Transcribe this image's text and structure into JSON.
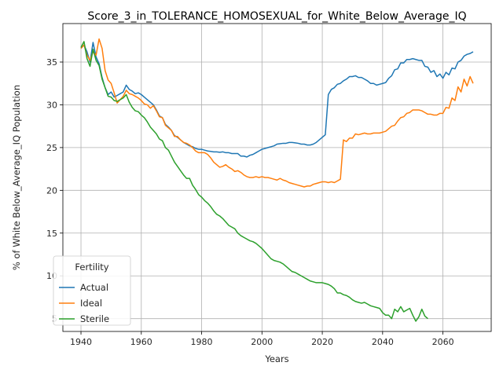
{
  "chart_data": {
    "type": "line",
    "title": "Score_3_in_TOLERANCE_HOMOSEXUAL_for_White_Below_Average_IQ",
    "xlabel": "Years",
    "ylabel": "% of White Below_Average_IQ Population",
    "xlim": [
      1934,
      2076
    ],
    "ylim": [
      3.5,
      39.5
    ],
    "xticks": [
      1940,
      1960,
      1980,
      2000,
      2020,
      2040,
      2060
    ],
    "yticks": [
      5,
      10,
      15,
      20,
      25,
      30,
      35
    ],
    "grid": true,
    "legend": {
      "title": "Fertility",
      "placement": "lower-left"
    },
    "series": [
      {
        "name": "Actual",
        "color": "#1f77b4",
        "x": [
          1940,
          1941,
          1942,
          1943,
          1944,
          1945,
          1946,
          1947,
          1948,
          1949,
          1950,
          1951,
          1952,
          1953,
          1954,
          1955,
          1956,
          1957,
          1958,
          1959,
          1960,
          1961,
          1962,
          1963,
          1964,
          1965,
          1966,
          1967,
          1968,
          1969,
          1970,
          1971,
          1972,
          1973,
          1974,
          1975,
          1976,
          1977,
          1978,
          1979,
          1980,
          1981,
          1982,
          1983,
          1984,
          1985,
          1986,
          1987,
          1988,
          1989,
          1990,
          1991,
          1992,
          1993,
          1994,
          1995,
          1996,
          1997,
          1998,
          1999,
          2000,
          2001,
          2002,
          2003,
          2004,
          2005,
          2006,
          2007,
          2008,
          2009,
          2010,
          2011,
          2012,
          2013,
          2014,
          2015,
          2016,
          2017,
          2018,
          2019,
          2020,
          2021,
          2022,
          2023,
          2024,
          2025,
          2026,
          2027,
          2028,
          2029,
          2030,
          2031,
          2032,
          2033,
          2034,
          2035,
          2036,
          2037,
          2038,
          2039,
          2040,
          2041,
          2042,
          2043,
          2044,
          2045,
          2046,
          2047,
          2048,
          2049,
          2050,
          2051,
          2052,
          2053,
          2054,
          2055,
          2056,
          2057,
          2058,
          2059,
          2060,
          2061,
          2062,
          2063,
          2064,
          2065,
          2066,
          2067,
          2068,
          2069,
          2070
        ],
        "y": [
          36.6,
          37.0,
          36.2,
          35.0,
          37.3,
          35.6,
          34.8,
          33.2,
          32.0,
          31.2,
          31.5,
          30.9,
          31.1,
          31.3,
          31.5,
          32.3,
          31.8,
          31.6,
          31.3,
          31.4,
          31.2,
          30.9,
          30.6,
          30.3,
          30.0,
          29.4,
          28.7,
          28.5,
          27.7,
          27.4,
          27.0,
          26.4,
          26.2,
          25.9,
          25.6,
          25.4,
          25.2,
          25.1,
          24.9,
          24.8,
          24.8,
          24.7,
          24.6,
          24.55,
          24.5,
          24.5,
          24.45,
          24.5,
          24.4,
          24.4,
          24.3,
          24.3,
          24.3,
          24.0,
          24.0,
          23.9,
          24.1,
          24.2,
          24.4,
          24.6,
          24.8,
          24.9,
          25.0,
          25.1,
          25.2,
          25.4,
          25.45,
          25.5,
          25.5,
          25.6,
          25.6,
          25.55,
          25.5,
          25.4,
          25.4,
          25.3,
          25.3,
          25.4,
          25.6,
          25.9,
          26.2,
          26.5,
          31.2,
          31.8,
          32.0,
          32.4,
          32.5,
          32.8,
          33.0,
          33.3,
          33.3,
          33.4,
          33.2,
          33.2,
          33.0,
          32.8,
          32.5,
          32.5,
          32.3,
          32.4,
          32.5,
          32.6,
          33.1,
          33.4,
          34.1,
          34.2,
          34.9,
          34.9,
          35.3,
          35.3,
          35.4,
          35.3,
          35.2,
          35.2,
          34.5,
          34.4,
          33.8,
          34.0,
          33.3,
          33.6,
          33.1,
          33.8,
          33.5,
          34.3,
          34.2,
          35.0,
          35.2,
          35.7,
          35.9,
          36.0,
          36.2
        ]
      },
      {
        "name": "Ideal",
        "color": "#ff7f0e",
        "x": [
          1940,
          1941,
          1942,
          1943,
          1944,
          1945,
          1946,
          1947,
          1948,
          1949,
          1950,
          1951,
          1952,
          1953,
          1954,
          1955,
          1956,
          1957,
          1958,
          1959,
          1960,
          1961,
          1962,
          1963,
          1964,
          1965,
          1966,
          1967,
          1968,
          1969,
          1970,
          1971,
          1972,
          1973,
          1974,
          1975,
          1976,
          1977,
          1978,
          1979,
          1980,
          1981,
          1982,
          1983,
          1984,
          1985,
          1986,
          1987,
          1988,
          1989,
          1990,
          1991,
          1992,
          1993,
          1994,
          1995,
          1996,
          1997,
          1998,
          1999,
          2000,
          2001,
          2002,
          2003,
          2004,
          2005,
          2006,
          2007,
          2008,
          2009,
          2010,
          2011,
          2012,
          2013,
          2014,
          2015,
          2016,
          2017,
          2018,
          2019,
          2020,
          2021,
          2022,
          2023,
          2024,
          2025,
          2026,
          2027,
          2028,
          2029,
          2030,
          2031,
          2032,
          2033,
          2034,
          2035,
          2036,
          2037,
          2038,
          2039,
          2040,
          2041,
          2042,
          2043,
          2044,
          2045,
          2046,
          2047,
          2048,
          2049,
          2050,
          2051,
          2052,
          2053,
          2054,
          2055,
          2056,
          2057,
          2058,
          2059,
          2060,
          2061,
          2062,
          2063,
          2064,
          2065,
          2066,
          2067,
          2068,
          2069,
          2070
        ],
        "y": [
          36.6,
          37.0,
          35.8,
          35.2,
          36.2,
          35.8,
          37.7,
          36.6,
          34.0,
          32.9,
          32.5,
          31.4,
          30.2,
          30.6,
          31.0,
          31.7,
          31.3,
          31.2,
          31.0,
          30.8,
          30.5,
          30.1,
          30.0,
          29.6,
          29.9,
          29.3,
          28.6,
          28.5,
          27.6,
          27.3,
          27.0,
          26.3,
          26.3,
          25.9,
          25.6,
          25.5,
          25.3,
          25.0,
          24.6,
          24.4,
          24.4,
          24.4,
          24.2,
          23.8,
          23.3,
          23.0,
          22.7,
          22.8,
          23.0,
          22.7,
          22.5,
          22.2,
          22.3,
          22.1,
          21.8,
          21.6,
          21.5,
          21.5,
          21.6,
          21.5,
          21.6,
          21.5,
          21.5,
          21.4,
          21.3,
          21.2,
          21.4,
          21.2,
          21.1,
          20.9,
          20.8,
          20.7,
          20.6,
          20.5,
          20.4,
          20.5,
          20.5,
          20.7,
          20.8,
          20.9,
          21.0,
          21.0,
          20.9,
          21.0,
          20.9,
          21.1,
          21.3,
          25.9,
          25.7,
          26.1,
          26.1,
          26.6,
          26.5,
          26.6,
          26.7,
          26.6,
          26.6,
          26.7,
          26.7,
          26.7,
          26.8,
          26.9,
          27.2,
          27.5,
          27.6,
          28.1,
          28.5,
          28.6,
          29.0,
          29.1,
          29.4,
          29.4,
          29.4,
          29.3,
          29.1,
          28.9,
          28.9,
          28.8,
          28.8,
          29.0,
          29.0,
          29.7,
          29.6,
          30.8,
          30.5,
          32.1,
          31.5,
          33.0,
          32.2,
          33.3,
          32.5
        ]
      },
      {
        "name": "Sterile",
        "color": "#2ca02c",
        "x": [
          1940,
          1941,
          1942,
          1943,
          1944,
          1945,
          1946,
          1947,
          1948,
          1949,
          1950,
          1951,
          1952,
          1953,
          1954,
          1955,
          1956,
          1957,
          1958,
          1959,
          1960,
          1961,
          1962,
          1963,
          1964,
          1965,
          1966,
          1967,
          1968,
          1969,
          1970,
          1971,
          1972,
          1973,
          1974,
          1975,
          1976,
          1977,
          1978,
          1979,
          1980,
          1981,
          1982,
          1983,
          1984,
          1985,
          1986,
          1987,
          1988,
          1989,
          1990,
          1991,
          1992,
          1993,
          1994,
          1995,
          1996,
          1997,
          1998,
          1999,
          2000,
          2001,
          2002,
          2003,
          2004,
          2005,
          2006,
          2007,
          2008,
          2009,
          2010,
          2011,
          2012,
          2013,
          2014,
          2015,
          2016,
          2017,
          2018,
          2019,
          2020,
          2021,
          2022,
          2023,
          2024,
          2025,
          2026,
          2027,
          2028,
          2029,
          2030,
          2031,
          2032,
          2033,
          2034,
          2035,
          2036,
          2037,
          2038,
          2039,
          2040,
          2041,
          2042,
          2043,
          2044,
          2045,
          2046,
          2047,
          2048,
          2049,
          2050,
          2051,
          2052,
          2053,
          2054,
          2055
        ],
        "y": [
          36.7,
          37.4,
          35.4,
          34.5,
          36.5,
          35.2,
          34.6,
          33.0,
          32.0,
          31.0,
          30.9,
          30.5,
          30.4,
          30.6,
          30.8,
          31.2,
          30.3,
          29.7,
          29.3,
          29.2,
          28.8,
          28.5,
          28.0,
          27.4,
          27.0,
          26.6,
          26.0,
          25.8,
          25.0,
          24.7,
          24.0,
          23.3,
          22.8,
          22.3,
          21.8,
          21.4,
          21.4,
          20.6,
          20.1,
          19.5,
          19.2,
          18.8,
          18.5,
          18.1,
          17.6,
          17.2,
          17.0,
          16.7,
          16.3,
          15.9,
          15.7,
          15.5,
          15.0,
          14.7,
          14.5,
          14.3,
          14.1,
          14.0,
          13.8,
          13.5,
          13.2,
          12.8,
          12.4,
          12.0,
          11.8,
          11.7,
          11.6,
          11.4,
          11.1,
          10.8,
          10.5,
          10.4,
          10.2,
          10.0,
          9.8,
          9.6,
          9.4,
          9.3,
          9.2,
          9.2,
          9.2,
          9.1,
          9.0,
          8.8,
          8.5,
          8.0,
          8.0,
          7.8,
          7.7,
          7.5,
          7.2,
          7.0,
          6.9,
          6.8,
          6.9,
          6.7,
          6.5,
          6.4,
          6.3,
          6.2,
          5.7,
          5.4,
          5.4,
          5.0,
          6.1,
          5.8,
          6.4,
          5.8,
          6.0,
          6.2,
          5.4,
          4.7,
          5.2,
          6.1,
          5.3,
          5.0
        ]
      }
    ]
  }
}
